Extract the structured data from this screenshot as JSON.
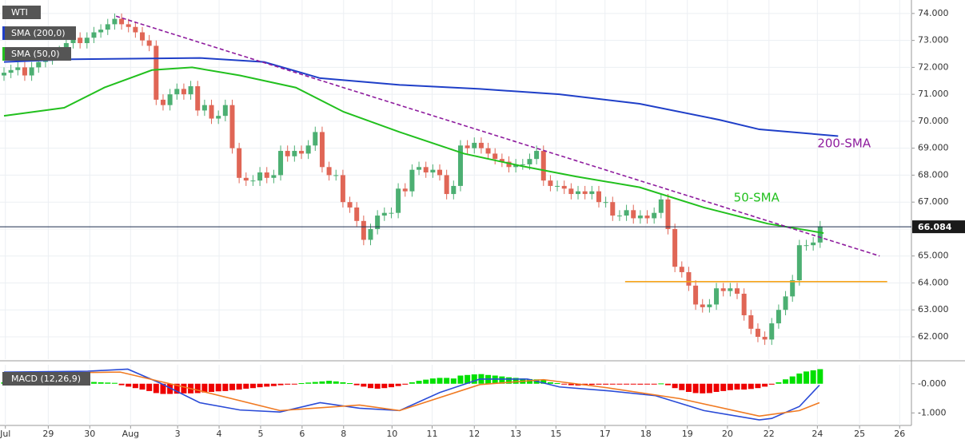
{
  "chart_data": [
    {
      "type": "candlestick",
      "title": "WTI",
      "xlim": [
        0,
        131.2
      ],
      "ylim": [
        61.17,
        74.5
      ],
      "grid": true,
      "xticks": [
        {
          "value": 0.2,
          "label": "Jul"
        },
        {
          "value": 6.4,
          "label": "29"
        },
        {
          "value": 12.4,
          "label": "30"
        },
        {
          "value": 18.3,
          "label": "Aug"
        },
        {
          "value": 25.1,
          "label": "3"
        },
        {
          "value": 31.1,
          "label": "4"
        },
        {
          "value": 37.1,
          "label": "5"
        },
        {
          "value": 43.1,
          "label": "6"
        },
        {
          "value": 49.1,
          "label": "8"
        },
        {
          "value": 56.1,
          "label": "10"
        },
        {
          "value": 61.9,
          "label": "11"
        },
        {
          "value": 68,
          "label": "12"
        },
        {
          "value": 74,
          "label": "13"
        },
        {
          "value": 79.8,
          "label": "15"
        },
        {
          "value": 86.9,
          "label": "17"
        },
        {
          "value": 92.8,
          "label": "18"
        },
        {
          "value": 98.8,
          "label": "19"
        },
        {
          "value": 104.6,
          "label": "20"
        },
        {
          "value": 110.6,
          "label": "22"
        },
        {
          "value": 117.6,
          "label": "24"
        },
        {
          "value": 123.7,
          "label": "25"
        },
        {
          "value": 129.5,
          "label": "26"
        }
      ],
      "yticks": [
        {
          "value": 62,
          "label": "62.000"
        },
        {
          "value": 63,
          "label": "63.000"
        },
        {
          "value": 64,
          "label": "64.000"
        },
        {
          "value": 65,
          "label": "65.000"
        },
        {
          "value": 66,
          "label": "66.000"
        },
        {
          "value": 67,
          "label": "67.000"
        },
        {
          "value": 68,
          "label": "68.000"
        },
        {
          "value": 69,
          "label": "69.000"
        },
        {
          "value": 70,
          "label": "70.000"
        },
        {
          "value": 71,
          "label": "71.000"
        },
        {
          "value": 72,
          "label": "72.000"
        },
        {
          "value": 73,
          "label": "73.000"
        },
        {
          "value": 74,
          "label": "74.000"
        }
      ],
      "last_price": 66.084,
      "up_color": "#4caf72",
      "down_color": "#e06656",
      "x": [
        0,
        1,
        2,
        3,
        4,
        5,
        6,
        7,
        8,
        9,
        10,
        11,
        12,
        13,
        14,
        15,
        16,
        17,
        18,
        19,
        20,
        21,
        22,
        23,
        24,
        25,
        26,
        27,
        28,
        29,
        30,
        31,
        32,
        33,
        34,
        35,
        36,
        37,
        38,
        39,
        40,
        41,
        42,
        43,
        44,
        45,
        46,
        47,
        48,
        49,
        50,
        51,
        52,
        53,
        54,
        55,
        56,
        57,
        58,
        59,
        60,
        61,
        62,
        63,
        64,
        65,
        66,
        67,
        68,
        69,
        70,
        71,
        72,
        73,
        74,
        75,
        76,
        77,
        78,
        79,
        80,
        81,
        82,
        83,
        84,
        85,
        86,
        87,
        88,
        89,
        90,
        91,
        92,
        93,
        94,
        95,
        96,
        97,
        98,
        99,
        100,
        101,
        102,
        103,
        104,
        105,
        106,
        107,
        108,
        109,
        110,
        111,
        112,
        113,
        114,
        115,
        116,
        117,
        118
      ],
      "open": [
        71.7,
        71.8,
        71.9,
        72.0,
        71.7,
        72.0,
        72.2,
        72.3,
        72.5,
        72.6,
        72.9,
        73.1,
        72.9,
        73.1,
        73.3,
        73.4,
        73.6,
        73.8,
        73.6,
        73.5,
        73.3,
        73.0,
        72.8,
        70.8,
        70.6,
        71.0,
        71.2,
        71.0,
        71.3,
        70.4,
        70.6,
        70.1,
        70.2,
        70.6,
        69.0,
        67.9,
        67.8,
        67.8,
        68.1,
        67.9,
        68.0,
        68.9,
        68.7,
        68.9,
        68.8,
        69.1,
        69.6,
        68.3,
        68.0,
        68.0,
        67.0,
        66.8,
        66.3,
        65.6,
        66.0,
        66.5,
        66.6,
        66.6,
        67.5,
        67.4,
        68.2,
        68.3,
        68.1,
        68.2,
        68.0,
        67.3,
        67.6,
        69.1,
        69.0,
        69.2,
        69.0,
        68.8,
        68.6,
        68.5,
        68.3,
        68.4,
        68.4,
        68.6,
        68.9,
        67.8,
        67.6,
        67.6,
        67.5,
        67.3,
        67.4,
        67.3,
        67.4,
        67.0,
        67.0,
        66.5,
        66.5,
        66.7,
        66.4,
        66.5,
        66.4,
        66.6,
        67.1,
        66.0,
        64.6,
        64.4,
        63.9,
        63.2,
        63.1,
        63.2,
        63.8,
        63.7,
        63.8,
        63.6,
        62.8,
        62.3,
        62.0,
        61.9,
        62.5,
        63.0,
        63.5,
        64.1,
        65.4,
        65.4,
        65.5
      ],
      "high": [
        72.0,
        72.1,
        72.2,
        72.2,
        72.2,
        72.4,
        72.5,
        72.7,
        72.8,
        73.1,
        73.3,
        73.3,
        73.3,
        73.5,
        73.6,
        73.8,
        74.0,
        74.0,
        73.8,
        73.7,
        73.5,
        73.2,
        73.0,
        71.0,
        71.2,
        71.4,
        71.4,
        71.5,
        71.5,
        70.8,
        70.8,
        70.4,
        70.8,
        70.8,
        69.2,
        68.1,
        68.0,
        68.3,
        68.3,
        68.2,
        69.1,
        69.1,
        69.1,
        69.1,
        69.3,
        69.8,
        69.8,
        68.5,
        68.2,
        68.2,
        67.2,
        67.0,
        66.5,
        66.2,
        66.7,
        66.8,
        66.8,
        67.7,
        67.7,
        68.4,
        68.5,
        68.5,
        68.4,
        68.4,
        68.2,
        67.8,
        69.3,
        69.3,
        69.4,
        69.4,
        69.2,
        69.0,
        68.8,
        68.7,
        68.6,
        68.6,
        68.8,
        69.1,
        69.1,
        68.0,
        67.8,
        67.8,
        67.7,
        67.6,
        67.6,
        67.6,
        67.6,
        67.2,
        67.2,
        66.7,
        66.9,
        66.9,
        66.7,
        66.7,
        66.8,
        67.3,
        67.3,
        66.2,
        64.8,
        64.6,
        64.1,
        63.4,
        63.4,
        64.0,
        64.0,
        64.0,
        64.0,
        63.8,
        63.0,
        62.5,
        62.2,
        62.7,
        63.2,
        63.7,
        64.3,
        65.6,
        65.6,
        65.7,
        66.3
      ],
      "low": [
        71.5,
        71.6,
        71.7,
        71.5,
        71.5,
        71.8,
        72.0,
        72.1,
        72.3,
        72.4,
        72.7,
        72.7,
        72.7,
        72.9,
        73.1,
        73.2,
        73.4,
        73.4,
        73.3,
        73.1,
        72.8,
        72.6,
        70.6,
        70.4,
        70.4,
        70.8,
        70.8,
        70.8,
        70.2,
        70.2,
        69.9,
        69.9,
        70.0,
        68.8,
        67.7,
        67.6,
        67.6,
        67.6,
        67.7,
        67.7,
        67.8,
        68.5,
        68.5,
        68.6,
        68.6,
        68.9,
        68.1,
        67.8,
        67.8,
        66.8,
        66.6,
        66.1,
        65.4,
        65.4,
        65.8,
        66.3,
        66.4,
        66.4,
        67.2,
        67.2,
        68.0,
        67.9,
        67.9,
        67.8,
        67.1,
        67.1,
        67.4,
        68.8,
        68.8,
        68.8,
        68.6,
        68.4,
        68.3,
        68.1,
        68.1,
        68.2,
        68.2,
        68.4,
        67.6,
        67.4,
        67.4,
        67.3,
        67.1,
        67.1,
        67.1,
        67.1,
        66.8,
        66.8,
        66.3,
        66.3,
        66.3,
        66.2,
        66.2,
        66.2,
        66.2,
        66.4,
        65.8,
        64.4,
        64.2,
        63.7,
        63.0,
        62.9,
        62.9,
        63.0,
        63.5,
        63.5,
        63.4,
        62.6,
        62.1,
        61.8,
        61.7,
        61.7,
        62.3,
        62.8,
        63.3,
        63.9,
        65.2,
        65.2,
        65.3
      ],
      "close": [
        71.8,
        71.9,
        72.0,
        71.7,
        72.0,
        72.2,
        72.3,
        72.5,
        72.6,
        72.9,
        73.1,
        72.9,
        73.1,
        73.3,
        73.4,
        73.6,
        73.8,
        73.6,
        73.5,
        73.3,
        73.0,
        72.8,
        70.8,
        70.6,
        71.0,
        71.2,
        71.0,
        71.3,
        70.4,
        70.6,
        70.1,
        70.2,
        70.6,
        69.0,
        67.9,
        67.8,
        67.8,
        68.1,
        67.9,
        68.0,
        68.9,
        68.7,
        68.9,
        68.8,
        69.1,
        69.6,
        68.3,
        68.0,
        68.0,
        67.0,
        66.8,
        66.3,
        65.6,
        66.0,
        66.5,
        66.6,
        66.6,
        67.5,
        67.4,
        68.2,
        68.3,
        68.1,
        68.2,
        68.0,
        67.3,
        67.6,
        69.1,
        69.0,
        69.2,
        69.0,
        68.8,
        68.6,
        68.5,
        68.3,
        68.4,
        68.4,
        68.6,
        68.9,
        67.8,
        67.6,
        67.6,
        67.5,
        67.3,
        67.4,
        67.3,
        67.4,
        67.0,
        67.0,
        66.5,
        66.5,
        66.7,
        66.4,
        66.5,
        66.4,
        66.6,
        67.1,
        66.0,
        64.6,
        64.4,
        63.9,
        63.2,
        63.1,
        63.2,
        63.8,
        63.7,
        63.8,
        63.6,
        62.8,
        62.3,
        62.0,
        61.9,
        62.5,
        63.0,
        63.5,
        64.1,
        65.4,
        65.4,
        65.5,
        66.1
      ],
      "series": [
        {
          "name": "SMA (200,0)",
          "color": "#1f3fc8",
          "x": [
            0,
            9.8,
            28.3,
            37.6,
            45.7,
            57.2,
            68.8,
            80.3,
            91.9,
            103.5,
            109.2,
            120.6
          ],
          "values": [
            72.2,
            72.3,
            72.35,
            72.2,
            71.6,
            71.35,
            71.2,
            71.0,
            70.65,
            70.05,
            69.7,
            69.45
          ]
        },
        {
          "name": "SMA (50,0)",
          "color": "#22c01e",
          "x": [
            0,
            8.7,
            14.5,
            21.4,
            27.2,
            34.1,
            42.2,
            49.1,
            57.2,
            66.5,
            74.6,
            82.7,
            91.9,
            101.2,
            110.4,
            118.5
          ],
          "values": [
            70.2,
            70.5,
            71.25,
            71.9,
            72.0,
            71.7,
            71.25,
            70.35,
            69.6,
            68.8,
            68.35,
            67.95,
            67.55,
            66.8,
            66.2,
            65.85
          ]
        }
      ],
      "lines": [
        {
          "color": "#8e1c9e",
          "dashed": true,
          "x": [
            16.2,
            126.6
          ],
          "values": [
            73.9,
            65.0
          ]
        },
        {
          "color": "#f5a31a",
          "dashed": false,
          "x": [
            89.8,
            127.7
          ],
          "values": [
            64.05,
            64.05
          ]
        }
      ],
      "annotations": [
        {
          "text": "200-SMA",
          "x": 117.6,
          "y": 69.17,
          "color": "#8e1c9e"
        },
        {
          "text": "50-SMA",
          "x": 105.5,
          "y": 67.16,
          "color": "#22c01e"
        }
      ]
    },
    {
      "type": "bar",
      "title": "MACD (12,26,9)",
      "xlim": [
        0,
        131.2
      ],
      "ylim": [
        -1.43,
        0.65
      ],
      "yticks": [
        {
          "value": 0,
          "label": "-0.000"
        },
        {
          "value": -1,
          "label": "-1.000"
        }
      ],
      "up_color": "#00e000",
      "down_color": "#ee0000",
      "x": [
        0,
        1,
        2,
        3,
        4,
        5,
        6,
        7,
        8,
        9,
        10,
        11,
        12,
        13,
        14,
        15,
        16,
        17,
        18,
        19,
        20,
        21,
        22,
        23,
        24,
        25,
        26,
        27,
        28,
        29,
        30,
        31,
        32,
        33,
        34,
        35,
        36,
        37,
        38,
        39,
        40,
        41,
        42,
        43,
        44,
        45,
        46,
        47,
        48,
        49,
        50,
        51,
        52,
        53,
        54,
        55,
        56,
        57,
        58,
        59,
        60,
        61,
        62,
        63,
        64,
        65,
        66,
        67,
        68,
        69,
        70,
        71,
        72,
        73,
        74,
        75,
        76,
        77,
        78,
        79,
        80,
        81,
        82,
        83,
        84,
        85,
        86,
        87,
        88,
        89,
        90,
        91,
        92,
        93,
        94,
        95,
        96,
        97,
        98,
        99,
        100,
        101,
        102,
        103,
        104,
        105,
        106,
        107,
        108,
        109,
        110,
        111,
        112,
        113,
        114,
        115,
        116,
        117,
        118
      ],
      "values": [
        0.05,
        0.06,
        0.06,
        0.05,
        0.05,
        0.06,
        0.06,
        0.07,
        0.07,
        0.08,
        0.08,
        0.07,
        0.06,
        0.06,
        0.05,
        0.04,
        0.03,
        -0.05,
        -0.1,
        -0.15,
        -0.2,
        -0.25,
        -0.32,
        -0.35,
        -0.35,
        -0.34,
        -0.33,
        -0.33,
        -0.32,
        -0.3,
        -0.28,
        -0.26,
        -0.25,
        -0.22,
        -0.2,
        -0.17,
        -0.15,
        -0.12,
        -0.1,
        -0.08,
        -0.05,
        -0.03,
        -0.01,
        0.02,
        0.04,
        0.06,
        0.08,
        0.1,
        0.08,
        0.05,
        0.02,
        -0.05,
        -0.1,
        -0.15,
        -0.17,
        -0.15,
        -0.12,
        -0.08,
        -0.03,
        0.05,
        0.1,
        0.14,
        0.18,
        0.2,
        0.2,
        0.18,
        0.28,
        0.3,
        0.32,
        0.33,
        0.3,
        0.28,
        0.25,
        0.22,
        0.2,
        0.18,
        0.16,
        0.15,
        0.12,
        0.05,
        0.02,
        -0.02,
        -0.05,
        -0.06,
        -0.05,
        -0.04,
        -0.03,
        -0.03,
        -0.02,
        -0.02,
        -0.01,
        -0.02,
        -0.03,
        -0.02,
        -0.01,
        0.01,
        -0.05,
        -0.15,
        -0.22,
        -0.28,
        -0.32,
        -0.33,
        -0.32,
        -0.28,
        -0.25,
        -0.22,
        -0.2,
        -0.2,
        -0.18,
        -0.15,
        -0.1,
        -0.03,
        0.05,
        0.15,
        0.25,
        0.35,
        0.42,
        0.46,
        0.5
      ],
      "series": [
        {
          "color": "#2a4bd7",
          "x": [
            0,
            12.1,
            17.9,
            22.5,
            28.3,
            34.1,
            39.9,
            45.7,
            51.4,
            57.2,
            63,
            68.8,
            75.7,
            80.3,
            87.3,
            94.2,
            101.2,
            109.2,
            111,
            115,
            117.9
          ],
          "values": [
            0.4,
            0.43,
            0.5,
            0.03,
            -0.65,
            -0.9,
            -0.97,
            -0.65,
            -0.84,
            -0.92,
            -0.3,
            0.16,
            0.16,
            -0.11,
            -0.24,
            -0.41,
            -0.92,
            -1.24,
            -1.19,
            -0.78,
            -0.05
          ]
        },
        {
          "color": "#f07a22",
          "x": [
            0,
            16.8,
            28.3,
            39.9,
            51.4,
            57.2,
            68.8,
            78,
            87.3,
            97.7,
            109.2,
            115,
            117.9
          ],
          "values": [
            0.35,
            0.4,
            -0.24,
            -0.92,
            -0.73,
            -0.92,
            -0.03,
            0.14,
            -0.14,
            -0.51,
            -1.11,
            -0.92,
            -0.65
          ]
        }
      ]
    }
  ]
}
